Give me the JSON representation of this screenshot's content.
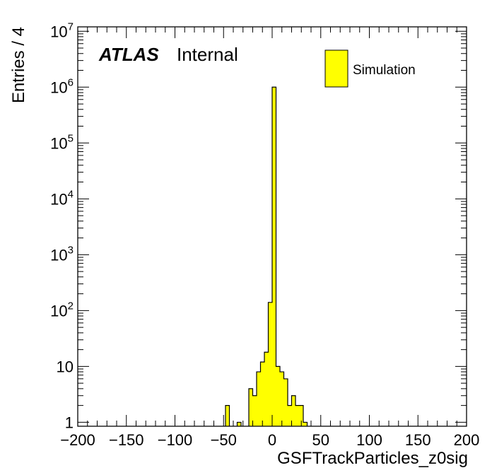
{
  "chart_data": {
    "type": "bar",
    "xlabel": "GSFTrackParticles_z0sig",
    "ylabel": "Entries / 4",
    "xlim": [
      -200,
      200
    ],
    "ylim": [
      0.85,
      12000000
    ],
    "y_scale": "log",
    "bin_width": 4,
    "x_ticks": [
      -200,
      -150,
      -100,
      -50,
      0,
      50,
      100,
      150,
      200
    ],
    "x_tick_labels": [
      "−200",
      "−150",
      "−100",
      "−50",
      "0",
      "50",
      "100",
      "150",
      "200"
    ],
    "y_tick_labels": [
      {
        "value": 1,
        "base": "1",
        "exp": ""
      },
      {
        "value": 10,
        "base": "10",
        "exp": ""
      },
      {
        "value": 100,
        "base": "10",
        "exp": "2"
      },
      {
        "value": 1000,
        "base": "10",
        "exp": "3"
      },
      {
        "value": 10000,
        "base": "10",
        "exp": "4"
      },
      {
        "value": 100000,
        "base": "10",
        "exp": "5"
      },
      {
        "value": 1000000,
        "base": "10",
        "exp": "6"
      },
      {
        "value": 10000000,
        "base": "10",
        "exp": "7"
      }
    ],
    "series": [
      {
        "name": "Simulation",
        "color": "#ffff00",
        "edgecolor": "#000000",
        "bins": [
          {
            "x0": -48,
            "x1": -44,
            "value": 2
          },
          {
            "x0": -36,
            "x1": -32,
            "value": 1
          },
          {
            "x0": -24,
            "x1": -20,
            "value": 4
          },
          {
            "x0": -20,
            "x1": -16,
            "value": 3
          },
          {
            "x0": -16,
            "x1": -12,
            "value": 8
          },
          {
            "x0": -12,
            "x1": -8,
            "value": 12
          },
          {
            "x0": -8,
            "x1": -4,
            "value": 18
          },
          {
            "x0": -4,
            "x1": 0,
            "value": 140
          },
          {
            "x0": 0,
            "x1": 4,
            "value": 1000000
          },
          {
            "x0": 4,
            "x1": 8,
            "value": 10
          },
          {
            "x0": 8,
            "x1": 12,
            "value": 8
          },
          {
            "x0": 12,
            "x1": 16,
            "value": 6
          },
          {
            "x0": 16,
            "x1": 20,
            "value": 2
          },
          {
            "x0": 20,
            "x1": 24,
            "value": 3
          },
          {
            "x0": 24,
            "x1": 28,
            "value": 2
          },
          {
            "x0": 28,
            "x1": 32,
            "value": 2
          },
          {
            "x0": 32,
            "x1": 36,
            "value": 1
          }
        ]
      }
    ],
    "legend": {
      "position": "top-right",
      "entries": [
        "Simulation"
      ]
    },
    "annotations": {
      "experiment": "ATLAS",
      "status": "Internal"
    },
    "grid": false
  }
}
